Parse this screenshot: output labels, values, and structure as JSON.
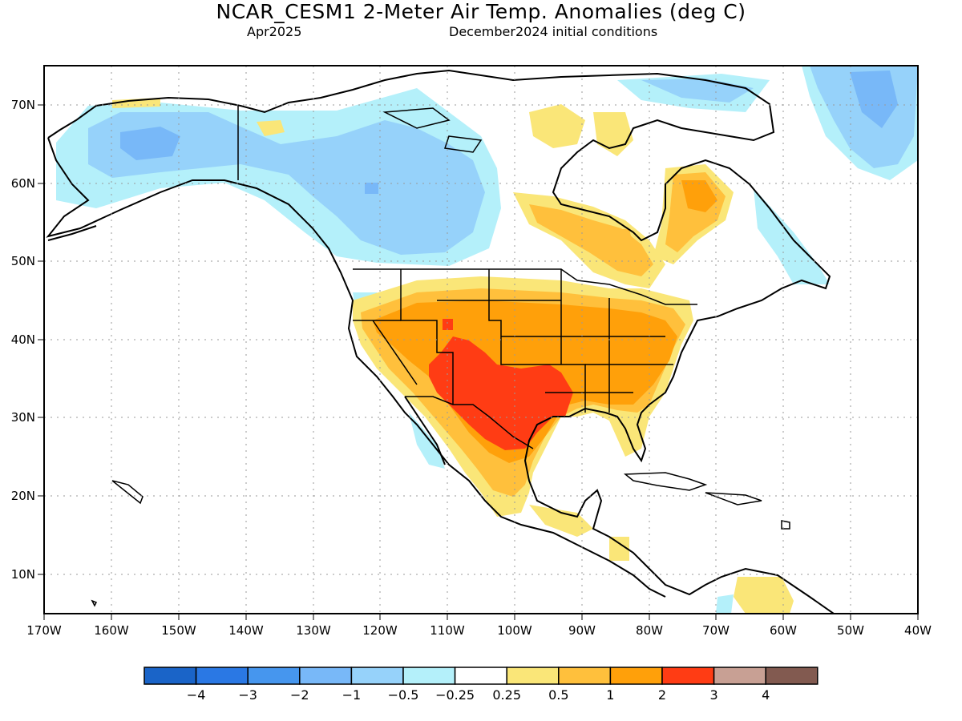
{
  "header": {
    "title": "NCAR_CESM1 2-Meter Air Temp. Anomalies (deg C)",
    "month": "Apr2025",
    "initial_conditions": "December2024 initial conditions"
  },
  "map": {
    "lon_range": [
      -170,
      -40
    ],
    "lat_range": [
      5,
      75
    ],
    "grid": "dotted",
    "x_ticks": [
      "170W",
      "160W",
      "150W",
      "140W",
      "130W",
      "120W",
      "110W",
      "100W",
      "90W",
      "80W",
      "70W",
      "60W",
      "50W",
      "40W"
    ],
    "y_ticks": [
      "10N",
      "20N",
      "30N",
      "40N",
      "50N",
      "60N",
      "70N"
    ]
  },
  "colorbar": {
    "colors": [
      "#1a64c8",
      "#2a78e4",
      "#4696ee",
      "#78b8f8",
      "#96d2fa",
      "#b4f0fa",
      "#ffffff",
      "#fae678",
      "#ffc03c",
      "#ffa00a",
      "#ff3c14",
      "#c8a094",
      "#825a50"
    ],
    "labels": [
      "−4",
      "−3",
      "−2",
      "−1",
      "−0.5",
      "−0.25",
      "0.25",
      "0.5",
      "1",
      "2",
      "3",
      "4"
    ]
  }
}
